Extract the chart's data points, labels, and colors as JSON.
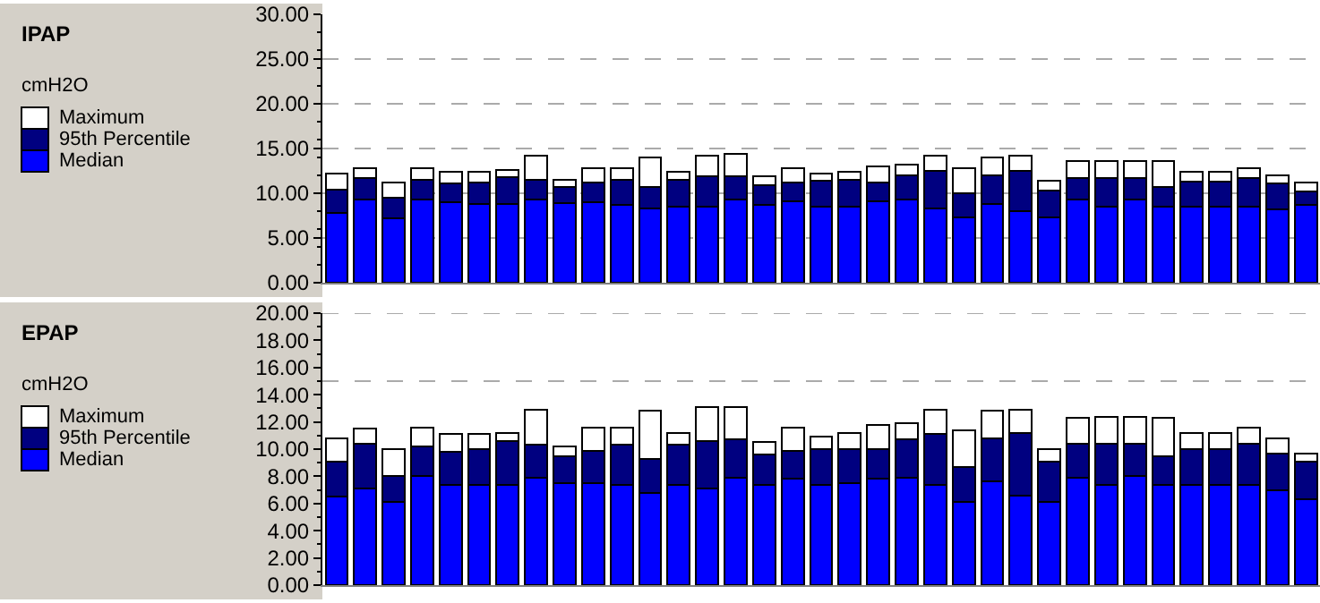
{
  "chart_data": [
    {
      "type": "bar",
      "stacked": true,
      "ylabel": "IPAP",
      "annotations": [
        "cmH2O"
      ],
      "legend": "left",
      "grid": "y",
      "tick_labels": "y",
      "categories": [
        null,
        null,
        null,
        null,
        null,
        null,
        null,
        null,
        null,
        null,
        null,
        null,
        null,
        null,
        null,
        null,
        null,
        null,
        null,
        null,
        null,
        null,
        null,
        null,
        null,
        null,
        null,
        null,
        null,
        null,
        null,
        null,
        null,
        null,
        null
      ],
      "ylim": [
        0,
        30
      ],
      "yticks": [
        {
          "value": 0,
          "label": "0.00"
        },
        {
          "value": 5,
          "label": "5.00"
        },
        {
          "value": 10,
          "label": "10.00"
        },
        {
          "value": 15,
          "label": "15.00"
        },
        {
          "value": 20,
          "label": "20.00"
        },
        {
          "value": 25,
          "label": "25.00"
        },
        {
          "value": 30,
          "label": "30.00"
        }
      ],
      "series": [
        {
          "name": "Median",
          "color": "#0000ff",
          "values": [
            7.8,
            9.3,
            7.2,
            9.3,
            9.0,
            8.8,
            8.8,
            9.3,
            8.9,
            9.0,
            8.7,
            8.3,
            8.5,
            8.5,
            9.3,
            8.7,
            9.1,
            8.5,
            8.5,
            9.1,
            9.3,
            8.3,
            7.3,
            8.8,
            8.0,
            7.3,
            9.3,
            8.5,
            9.3,
            8.5,
            8.5,
            8.5,
            8.5,
            8.2,
            8.7
          ]
        },
        {
          "name": "95th Percentile",
          "color": "#000080",
          "values": [
            2.6,
            2.4,
            2.3,
            2.2,
            2.1,
            2.4,
            3.0,
            2.2,
            1.8,
            2.2,
            2.8,
            2.4,
            3.0,
            3.4,
            2.6,
            2.2,
            2.1,
            2.9,
            3.0,
            2.1,
            2.7,
            4.2,
            2.7,
            3.2,
            4.5,
            3.0,
            2.4,
            3.2,
            2.4,
            2.2,
            2.8,
            2.8,
            3.2,
            2.9,
            1.5
          ]
        },
        {
          "name": "Maximum",
          "color": "#ffffff",
          "values": [
            1.8,
            1.1,
            1.7,
            1.3,
            1.3,
            1.2,
            0.8,
            2.7,
            0.8,
            1.6,
            1.3,
            3.3,
            0.9,
            2.3,
            2.5,
            1.0,
            1.6,
            0.8,
            0.9,
            1.8,
            1.2,
            1.7,
            2.8,
            2.0,
            1.7,
            1.1,
            1.9,
            1.9,
            1.9,
            2.9,
            1.1,
            1.1,
            1.1,
            0.9,
            1.0
          ]
        }
      ]
    },
    {
      "type": "bar",
      "stacked": true,
      "ylabel": "EPAP",
      "annotations": [
        "cmH2O"
      ],
      "legend": "left",
      "tick_labels": "y",
      "categories": [
        null,
        null,
        null,
        null,
        null,
        null,
        null,
        null,
        null,
        null,
        null,
        null,
        null,
        null,
        null,
        null,
        null,
        null,
        null,
        null,
        null,
        null,
        null,
        null,
        null,
        null,
        null,
        null,
        null,
        null,
        null,
        null,
        null,
        null,
        null
      ],
      "ylim": [
        0,
        20
      ],
      "yticks": [
        {
          "value": 0,
          "label": "0.00"
        },
        {
          "value": 2,
          "label": "2.00"
        },
        {
          "value": 4,
          "label": "4.00"
        },
        {
          "value": 6,
          "label": "6.00"
        },
        {
          "value": 8,
          "label": "8.00"
        },
        {
          "value": 10,
          "label": "10.00"
        },
        {
          "value": 12,
          "label": "12.00"
        },
        {
          "value": 14,
          "label": "14.00"
        },
        {
          "value": 16,
          "label": "16.00"
        },
        {
          "value": 18,
          "label": "18.00"
        },
        {
          "value": 20,
          "label": "20.00"
        }
      ],
      "ref_lines": [
        {
          "axis": "y",
          "value": 15,
          "color": "#aaaaaa",
          "line_style": "dashed"
        },
        {
          "axis": "y",
          "value": 20,
          "color": "#aaaaaa",
          "line_style": "dashed"
        }
      ],
      "series": [
        {
          "name": "Median",
          "color": "#0000ff",
          "values": [
            6.5,
            7.1,
            6.1,
            8.0,
            7.4,
            7.4,
            7.4,
            7.9,
            7.5,
            7.5,
            7.4,
            6.8,
            7.4,
            7.1,
            7.9,
            7.4,
            7.8,
            7.4,
            7.5,
            7.8,
            7.9,
            7.4,
            6.1,
            7.6,
            6.6,
            6.1,
            7.9,
            7.4,
            8.0,
            7.4,
            7.4,
            7.4,
            7.4,
            7.0,
            6.3
          ]
        },
        {
          "name": "95th Percentile",
          "color": "#000080",
          "values": [
            2.6,
            3.3,
            1.9,
            2.2,
            2.4,
            2.6,
            3.2,
            2.4,
            2.0,
            2.4,
            2.9,
            2.5,
            2.9,
            3.5,
            2.8,
            2.2,
            2.1,
            2.6,
            2.5,
            2.2,
            2.8,
            3.7,
            2.6,
            3.2,
            4.6,
            3.0,
            2.5,
            3.0,
            2.4,
            2.1,
            2.6,
            2.6,
            3.0,
            2.7,
            2.8
          ]
        },
        {
          "name": "Maximum",
          "color": "#ffffff",
          "values": [
            1.7,
            1.1,
            2.0,
            1.4,
            1.3,
            1.1,
            0.6,
            2.6,
            0.7,
            1.7,
            1.3,
            3.5,
            0.9,
            2.5,
            2.4,
            0.9,
            1.7,
            0.9,
            1.2,
            1.8,
            1.2,
            1.8,
            2.7,
            2.0,
            1.7,
            0.9,
            1.9,
            2.0,
            2.0,
            2.8,
            1.2,
            1.2,
            1.2,
            1.1,
            0.6
          ]
        }
      ]
    }
  ]
}
